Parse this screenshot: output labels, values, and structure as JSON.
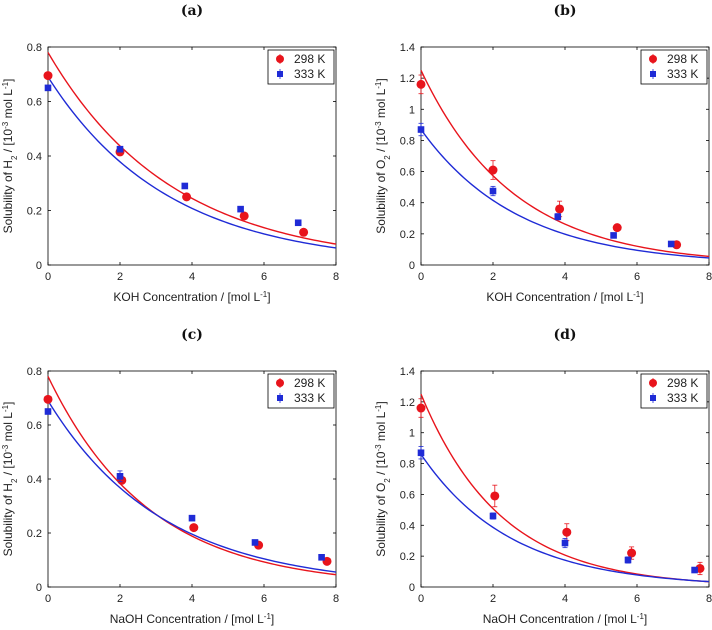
{
  "colors": {
    "series_298": "#e8141c",
    "series_333": "#1f2bd6",
    "axis": "#000000"
  },
  "chart_data": [
    {
      "type": "scatter",
      "title": "(a)",
      "xlabel": "KOH Concentration / [mol L^-1]",
      "ylabel": "Solubility of H_2 / [10^-3 mol L^-1]",
      "xlim": [
        0,
        8
      ],
      "ylim": [
        0,
        0.8
      ],
      "xticks": [
        0,
        2,
        4,
        6,
        8
      ],
      "yticks": [
        0,
        0.2,
        0.4,
        0.6,
        0.8
      ],
      "ytick_labels": [
        "0",
        "0.2",
        "0.4",
        "0.6",
        "0.8"
      ],
      "legend_position": "top-right",
      "series": [
        {
          "name": "298 K",
          "marker": "circle",
          "x": [
            0,
            2,
            3.85,
            5.45,
            7.1
          ],
          "y": [
            0.695,
            0.415,
            0.25,
            0.18,
            0.12
          ],
          "fit": {
            "a": 0.78,
            "b": 0.29
          }
        },
        {
          "name": "333 K",
          "marker": "square",
          "x": [
            0,
            2,
            3.8,
            5.35,
            6.95
          ],
          "y": [
            0.65,
            0.425,
            0.29,
            0.205,
            0.155
          ],
          "fit": {
            "a": 0.69,
            "b": 0.3
          }
        }
      ]
    },
    {
      "type": "scatter",
      "title": "(b)",
      "xlabel": "KOH Concentration / [mol L^-1]",
      "ylabel": "Solubility of O_2 / [10^-3 mol L^-1]",
      "xlim": [
        0,
        8
      ],
      "ylim": [
        0,
        1.4
      ],
      "xticks": [
        0,
        2,
        4,
        6,
        8
      ],
      "yticks": [
        0,
        0.2,
        0.4,
        0.6,
        0.8,
        1.0,
        1.2,
        1.4
      ],
      "ytick_labels": [
        "0",
        "0.2",
        "0.4",
        "0.6",
        "0.8",
        "1",
        "1.2",
        "1.4"
      ],
      "legend_position": "top-right",
      "series": [
        {
          "name": "298 K",
          "marker": "circle",
          "x": [
            0,
            2,
            3.85,
            5.45,
            7.1
          ],
          "y": [
            1.16,
            0.61,
            0.36,
            0.24,
            0.13
          ],
          "err": [
            0.06,
            0.06,
            0.05,
            0.02,
            0.02
          ],
          "fit": {
            "a": 1.25,
            "b": 0.39
          }
        },
        {
          "name": "333 K",
          "marker": "square",
          "x": [
            0,
            2,
            3.8,
            5.35,
            6.95
          ],
          "y": [
            0.87,
            0.475,
            0.31,
            0.19,
            0.135
          ],
          "err": [
            0.04,
            0.03,
            0.02,
            0.01,
            0.01
          ],
          "fit": {
            "a": 0.87,
            "b": 0.37
          }
        }
      ]
    },
    {
      "type": "scatter",
      "title": "(c)",
      "xlabel": "NaOH Concentration / [mol L^-1]",
      "ylabel": "Solubility of H_2 / [10^-3 mol L^-1]",
      "xlim": [
        0,
        8
      ],
      "ylim": [
        0,
        0.8
      ],
      "xticks": [
        0,
        2,
        4,
        6,
        8
      ],
      "yticks": [
        0,
        0.2,
        0.4,
        0.6,
        0.8
      ],
      "ytick_labels": [
        "0",
        "0.2",
        "0.4",
        "0.6",
        "0.8"
      ],
      "legend_position": "top-right",
      "series": [
        {
          "name": "298 K",
          "marker": "circle",
          "x": [
            0,
            2.05,
            4.05,
            5.85,
            7.75
          ],
          "y": [
            0.695,
            0.395,
            0.22,
            0.155,
            0.095
          ],
          "fit": {
            "a": 0.78,
            "b": 0.355
          }
        },
        {
          "name": "333 K",
          "marker": "square",
          "x": [
            0,
            2,
            4,
            5.75,
            7.6
          ],
          "y": [
            0.65,
            0.41,
            0.255,
            0.165,
            0.11
          ],
          "err": [
            0,
            0.02,
            0,
            0,
            0
          ],
          "fit": {
            "a": 0.69,
            "b": 0.315
          }
        }
      ]
    },
    {
      "type": "scatter",
      "title": "(d)",
      "xlabel": "NaOH Concentration / [mol L^-1]",
      "ylabel": "Solubility of O_2 / [10^-3 mol L^-1]",
      "xlim": [
        0,
        8
      ],
      "ylim": [
        0,
        1.4
      ],
      "xticks": [
        0,
        2,
        4,
        6,
        8
      ],
      "yticks": [
        0,
        0.2,
        0.4,
        0.6,
        0.8,
        1.0,
        1.2,
        1.4
      ],
      "ytick_labels": [
        "0",
        "0.2",
        "0.4",
        "0.6",
        "0.8",
        "1",
        "1.2",
        "1.4"
      ],
      "legend_position": "top-right",
      "series": [
        {
          "name": "298 K",
          "marker": "circle",
          "x": [
            0,
            2.05,
            4.05,
            5.85,
            7.75
          ],
          "y": [
            1.16,
            0.59,
            0.355,
            0.22,
            0.12
          ],
          "err": [
            0.06,
            0.07,
            0.055,
            0.04,
            0.04
          ],
          "fit": {
            "a": 1.25,
            "b": 0.45
          }
        },
        {
          "name": "333 K",
          "marker": "square",
          "x": [
            0,
            2,
            4,
            5.75,
            7.6
          ],
          "y": [
            0.87,
            0.46,
            0.285,
            0.175,
            0.11
          ],
          "err": [
            0.04,
            0.02,
            0.03,
            0.02,
            0.01
          ],
          "fit": {
            "a": 0.86,
            "b": 0.4
          }
        }
      ]
    }
  ]
}
